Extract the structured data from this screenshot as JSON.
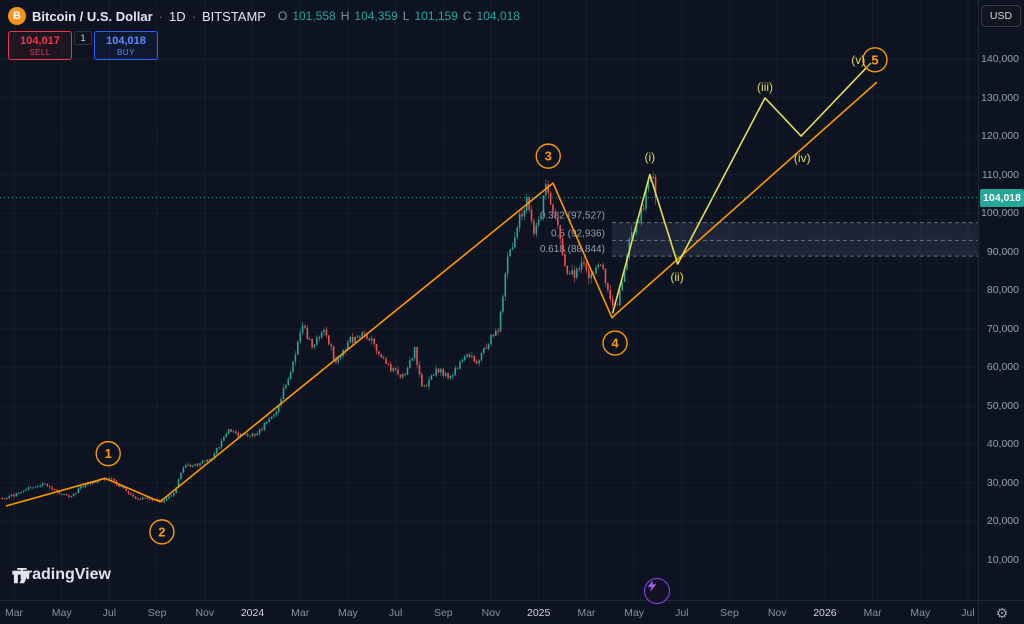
{
  "colors": {
    "bg": "#0d1320",
    "up": "#26a69a",
    "down": "#ef5350",
    "orange": "#ff9800",
    "yellow": "#e5dd56",
    "grid": "rgba(158,170,190,0.07)",
    "sell": "#f23645",
    "buy": "#2962ff",
    "badge_bg": "#26a69a"
  },
  "header": {
    "icon_letter": "B",
    "title": "Bitcoin / U.S. Dollar",
    "sep": "·",
    "interval": "1D",
    "exchange": "BITSTAMP",
    "ohlc": {
      "o_label": "O",
      "o_value": "101,558",
      "h_label": "H",
      "h_value": "104,359",
      "l_label": "L",
      "l_value": "101,159",
      "c_label": "C",
      "c_value": "104,018"
    },
    "sell": {
      "price": "104,017",
      "label": "SELL"
    },
    "spread": "1",
    "buy": {
      "price": "104,018",
      "label": "BUY"
    }
  },
  "price_scale": {
    "currency": "USD",
    "current_price": "104,018"
  },
  "watermark": "TradingView",
  "icons": {
    "gear": "⚙",
    "bolt": "lightning-bolt",
    "bitcoin": "bitcoin-circle"
  },
  "chart_data": {
    "type": "candlestick",
    "symbol": "BTCUSD",
    "exchange": "BITSTAMP",
    "interval": "1D",
    "last_close": 104018,
    "y_axis": {
      "ticks": [
        140000,
        130000,
        120000,
        110000,
        100000,
        90000,
        80000,
        70000,
        60000,
        50000,
        40000,
        30000,
        20000,
        10000
      ],
      "labels": [
        "140,000",
        "130,000",
        "120,000",
        "110,000",
        "100,000",
        "90,000",
        "80,000",
        "70,000",
        "60,000",
        "50,000",
        "40,000",
        "30,000",
        "20,000",
        "10,000"
      ]
    },
    "x_axis": {
      "ticks": [
        {
          "t": 0,
          "label": "Mar",
          "major": false
        },
        {
          "t": 2,
          "label": "May",
          "major": false
        },
        {
          "t": 4,
          "label": "Jul",
          "major": false
        },
        {
          "t": 6,
          "label": "Sep",
          "major": false
        },
        {
          "t": 8,
          "label": "Nov",
          "major": false
        },
        {
          "t": 10,
          "label": "2024",
          "major": true
        },
        {
          "t": 12,
          "label": "Mar",
          "major": false
        },
        {
          "t": 14,
          "label": "May",
          "major": false
        },
        {
          "t": 16,
          "label": "Jul",
          "major": false
        },
        {
          "t": 18,
          "label": "Sep",
          "major": false
        },
        {
          "t": 20,
          "label": "Nov",
          "major": false
        },
        {
          "t": 22,
          "label": "2025",
          "major": true
        },
        {
          "t": 24,
          "label": "Mar",
          "major": false
        },
        {
          "t": 26,
          "label": "May",
          "major": false
        },
        {
          "t": 28,
          "label": "Jul",
          "major": false
        },
        {
          "t": 30,
          "label": "Sep",
          "major": false
        },
        {
          "t": 32,
          "label": "Nov",
          "major": false
        },
        {
          "t": 34,
          "label": "2026",
          "major": true
        },
        {
          "t": 36,
          "label": "Mar",
          "major": false
        },
        {
          "t": 38,
          "label": "May",
          "major": false
        },
        {
          "t": 40,
          "label": "Jul",
          "major": false
        }
      ]
    },
    "price_anchors": [
      [
        -0.5,
        26200
      ],
      [
        0,
        26800
      ],
      [
        0.6,
        28600
      ],
      [
        1.2,
        29900
      ],
      [
        1.8,
        27600
      ],
      [
        2.4,
        26500
      ],
      [
        3.0,
        29800
      ],
      [
        3.6,
        30900
      ],
      [
        3.95,
        31200
      ],
      [
        4.4,
        29500
      ],
      [
        5.0,
        26200
      ],
      [
        5.6,
        25900
      ],
      [
        6.2,
        25200
      ],
      [
        6.7,
        27200
      ],
      [
        7.1,
        34300
      ],
      [
        7.7,
        34600
      ],
      [
        8.3,
        36500
      ],
      [
        9.0,
        43900
      ],
      [
        9.6,
        42100
      ],
      [
        10.2,
        43000
      ],
      [
        10.9,
        47500
      ],
      [
        11.5,
        57000
      ],
      [
        12.1,
        71500
      ],
      [
        12.5,
        64800
      ],
      [
        13.0,
        70500
      ],
      [
        13.5,
        60900
      ],
      [
        14.1,
        67200
      ],
      [
        14.6,
        69000
      ],
      [
        15.1,
        66000
      ],
      [
        15.7,
        60200
      ],
      [
        16.3,
        57500
      ],
      [
        16.8,
        64500
      ],
      [
        17.15,
        54200
      ],
      [
        17.7,
        59300
      ],
      [
        18.3,
        57500
      ],
      [
        18.9,
        63200
      ],
      [
        19.4,
        61200
      ],
      [
        19.9,
        66800
      ],
      [
        20.3,
        69800
      ],
      [
        20.7,
        88000
      ],
      [
        21.1,
        97000
      ],
      [
        21.55,
        103800
      ],
      [
        21.8,
        95000
      ],
      [
        22.05,
        98000
      ],
      [
        22.3,
        106800
      ],
      [
        22.55,
        102000
      ],
      [
        22.8,
        96000
      ],
      [
        23.1,
        85200
      ],
      [
        23.5,
        84200
      ],
      [
        23.9,
        86500
      ],
      [
        24.2,
        82800
      ],
      [
        24.6,
        87000
      ],
      [
        25.0,
        78200
      ],
      [
        25.25,
        75400
      ],
      [
        25.6,
        85000
      ],
      [
        25.85,
        94200
      ],
      [
        26.15,
        96500
      ],
      [
        26.45,
        103800
      ],
      [
        26.7,
        110300
      ],
      [
        26.95,
        104018
      ]
    ],
    "waves": [
      {
        "label": "1",
        "t": 3.95,
        "price": 37600
      },
      {
        "label": "2",
        "t": 6.2,
        "price": 17300
      },
      {
        "label": "3",
        "t": 22.4,
        "price": 114800
      },
      {
        "label": "4",
        "t": 25.2,
        "price": 66300
      },
      {
        "label": "5",
        "t": 36.1,
        "price": 139800
      }
    ],
    "subwaves": [
      {
        "label": "(i)",
        "t": 26.66,
        "price": 114600
      },
      {
        "label": "(ii)",
        "t": 27.8,
        "price": 83400
      },
      {
        "label": "(iii)",
        "t": 31.49,
        "price": 132700
      },
      {
        "label": "(iv)",
        "t": 33.05,
        "price": 114300
      },
      {
        "label": "(v)",
        "t": 35.4,
        "price": 139700
      }
    ],
    "impulse_line": {
      "color": "#ff9800",
      "points": [
        [
          -0.34,
          24000
        ],
        [
          3.82,
          31200
        ],
        [
          6.12,
          25100
        ],
        [
          22.6,
          107800
        ],
        [
          25.07,
          72900
        ],
        [
          36.18,
          134000
        ]
      ]
    },
    "projection_line": {
      "color": "#e5dd56",
      "points": [
        [
          25.1,
          74000
        ],
        [
          26.66,
          110000
        ],
        [
          27.83,
          86800
        ],
        [
          31.49,
          129900
        ],
        [
          33.0,
          120000
        ],
        [
          35.93,
          139000
        ]
      ]
    },
    "fib": {
      "x_start_t": 25.07,
      "x_end_t": 40.4,
      "levels": [
        {
          "label": "0.382 (97,527)",
          "value": 97527
        },
        {
          "label": "0.5 (92,936)",
          "value": 92936
        },
        {
          "label": "0.618 (88,844)",
          "value": 88844
        }
      ]
    }
  }
}
